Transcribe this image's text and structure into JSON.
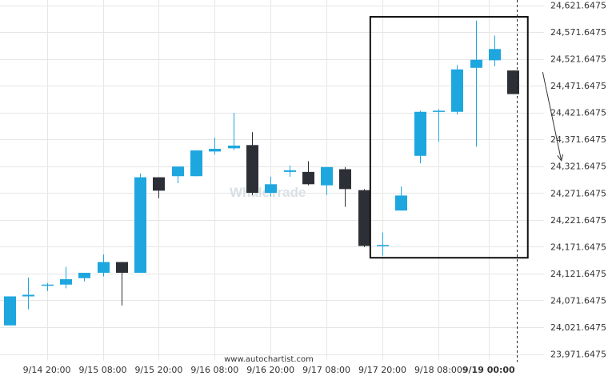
{
  "chart_data": {
    "type": "candlestick",
    "title": "",
    "xlabel": "",
    "ylabel": "",
    "ylim": [
      23960,
      24630
    ],
    "y_ticks": [
      "24,621.6475",
      "24,571.6475",
      "24,521.6475",
      "24,471.6475",
      "24,421.6475",
      "24,371.6475",
      "24,321.6475",
      "24,271.6475",
      "24,221.6475",
      "24,171.6475",
      "24,121.6475",
      "24,071.6475",
      "24,021.6475",
      "23,971.6475"
    ],
    "y_tick_values": [
      24621.6475,
      24571.6475,
      24521.6475,
      24471.6475,
      24421.6475,
      24371.6475,
      24321.6475,
      24271.6475,
      24221.6475,
      24171.6475,
      24121.6475,
      24071.6475,
      24021.6475,
      23971.6475
    ],
    "x_ticks": [
      {
        "label": "9/14 20:00",
        "index": 2
      },
      {
        "label": "9/15 08:00",
        "index": 5
      },
      {
        "label": "9/15 20:00",
        "index": 8
      },
      {
        "label": "9/16 08:00",
        "index": 11
      },
      {
        "label": "9/16 20:00",
        "index": 14
      },
      {
        "label": "9/17 08:00",
        "index": 17
      },
      {
        "label": "9/17 20:00",
        "index": 20
      },
      {
        "label": "9/18 08:00",
        "index": 23
      },
      {
        "label": "9/19 00:00",
        "index": 25.7,
        "bold": true
      }
    ],
    "candles": [
      {
        "o": 24025,
        "h": 24079,
        "l": 24025,
        "c": 24079
      },
      {
        "o": 24079,
        "h": 24114,
        "l": 24055,
        "c": 24082
      },
      {
        "o": 24101,
        "h": 24104,
        "l": 24089,
        "c": 24101
      },
      {
        "o": 24101,
        "h": 24134,
        "l": 24094,
        "c": 24111
      },
      {
        "o": 24113,
        "h": 24123,
        "l": 24107,
        "c": 24123
      },
      {
        "o": 24123,
        "h": 24157,
        "l": 24116,
        "c": 24143
      },
      {
        "o": 24143,
        "h": 24143,
        "l": 24062,
        "c": 24123
      },
      {
        "o": 24123,
        "h": 24308,
        "l": 24123,
        "c": 24301
      },
      {
        "o": 24301,
        "h": 24301,
        "l": 24262,
        "c": 24276
      },
      {
        "o": 24303,
        "h": 24321,
        "l": 24290,
        "c": 24321
      },
      {
        "o": 24303,
        "h": 24351,
        "l": 24303,
        "c": 24351
      },
      {
        "o": 24349,
        "h": 24375,
        "l": 24343,
        "c": 24354
      },
      {
        "o": 24355,
        "h": 24421,
        "l": 24352,
        "c": 24360
      },
      {
        "o": 24361,
        "h": 24385,
        "l": 24268,
        "c": 24272
      },
      {
        "o": 24272,
        "h": 24302,
        "l": 24265,
        "c": 24288
      },
      {
        "o": 24311,
        "h": 24323,
        "l": 24302,
        "c": 24314
      },
      {
        "o": 24311,
        "h": 24331,
        "l": 24286,
        "c": 24288
      },
      {
        "o": 24286,
        "h": 24320,
        "l": 24268,
        "c": 24320
      },
      {
        "o": 24316,
        "h": 24320,
        "l": 24246,
        "c": 24279
      },
      {
        "o": 24277,
        "h": 24279,
        "l": 24171,
        "c": 24173
      },
      {
        "o": 24174,
        "h": 24198,
        "l": 24155,
        "c": 24175
      },
      {
        "o": 24239,
        "h": 24284,
        "l": 24239,
        "c": 24267
      },
      {
        "o": 24341,
        "h": 24425,
        "l": 24327,
        "c": 24423
      },
      {
        "o": 24425,
        "h": 24428,
        "l": 24367,
        "c": 24425
      },
      {
        "o": 24423,
        "h": 24510,
        "l": 24418,
        "c": 24502
      },
      {
        "o": 24505,
        "h": 24593,
        "l": 24358,
        "c": 24520
      },
      {
        "o": 24519,
        "h": 24565,
        "l": 24508,
        "c": 24540
      },
      {
        "o": 24500,
        "h": 24500,
        "l": 24456,
        "c": 24456
      }
    ],
    "highlight_box": {
      "start_index": 19.35,
      "end_index": 27.8,
      "y_top": 24600,
      "y_bottom": 24151
    },
    "forecast_arrow": {
      "x_from": 28.6,
      "y_from": 24497,
      "x_to": 29.6,
      "y_to": 24332
    },
    "vertical_marker_index": 27.2,
    "watermark": "WhaleTrade",
    "colors": {
      "up": "#1ea6df",
      "down": "#2d2f36",
      "grid": "#e6e6e6",
      "box": "#111111",
      "arrow": "#333333"
    },
    "grid": true,
    "footer": "www.autochartist.com"
  }
}
